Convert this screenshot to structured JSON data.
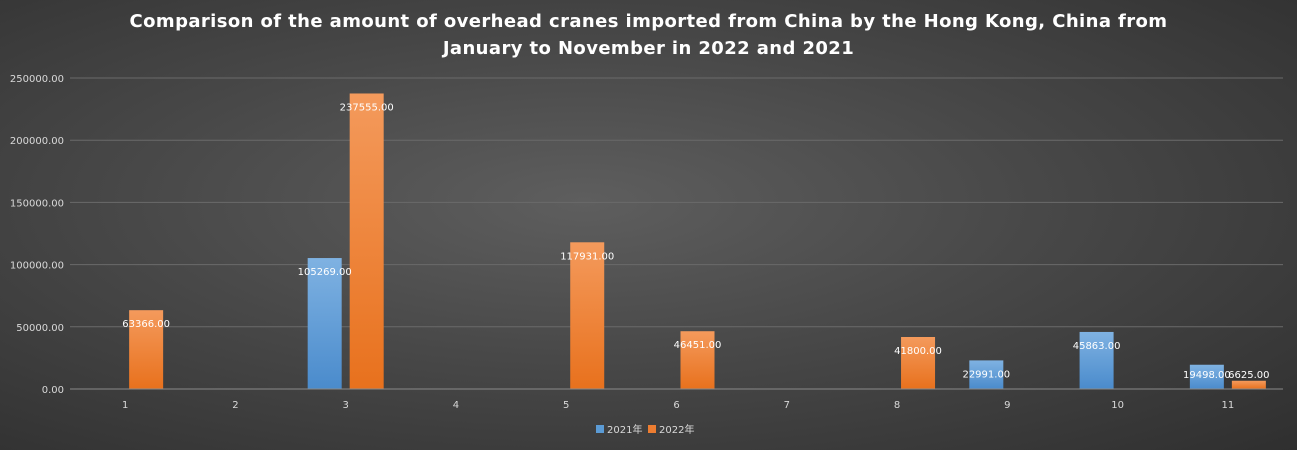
{
  "chart_data": {
    "type": "bar",
    "title_lines": [
      "Comparison of the amount of overhead cranes imported from China by the Hong Kong, China from",
      "January to November in 2022 and 2021"
    ],
    "categories": [
      "1",
      "2",
      "3",
      "4",
      "5",
      "6",
      "7",
      "8",
      "9",
      "10",
      "11"
    ],
    "series": [
      {
        "name": "2021年",
        "color": "#5b9bd5",
        "values": [
          null,
          null,
          105269.0,
          null,
          null,
          null,
          null,
          null,
          22991.0,
          45863.0,
          19498.0
        ],
        "labels": [
          null,
          null,
          "105269.00",
          null,
          null,
          null,
          null,
          null,
          "22991.00",
          "45863.00",
          "19498.00"
        ]
      },
      {
        "name": "2022年",
        "color": "#ed7d31",
        "values": [
          63366.0,
          null,
          237555.0,
          null,
          117931.0,
          46451.0,
          null,
          41800.0,
          null,
          null,
          6625.0
        ],
        "labels": [
          "63366.00",
          null,
          "237555.00",
          null,
          "117931.00",
          "46451.00",
          null,
          "41800.00",
          null,
          null,
          "6625.00"
        ]
      }
    ],
    "y_ticks": [
      "0.00",
      "50000.00",
      "100000.00",
      "150000.00",
      "200000.00",
      "250000.00"
    ],
    "ylim": [
      0,
      250000
    ],
    "grid": true,
    "legend_position": "bottom"
  }
}
